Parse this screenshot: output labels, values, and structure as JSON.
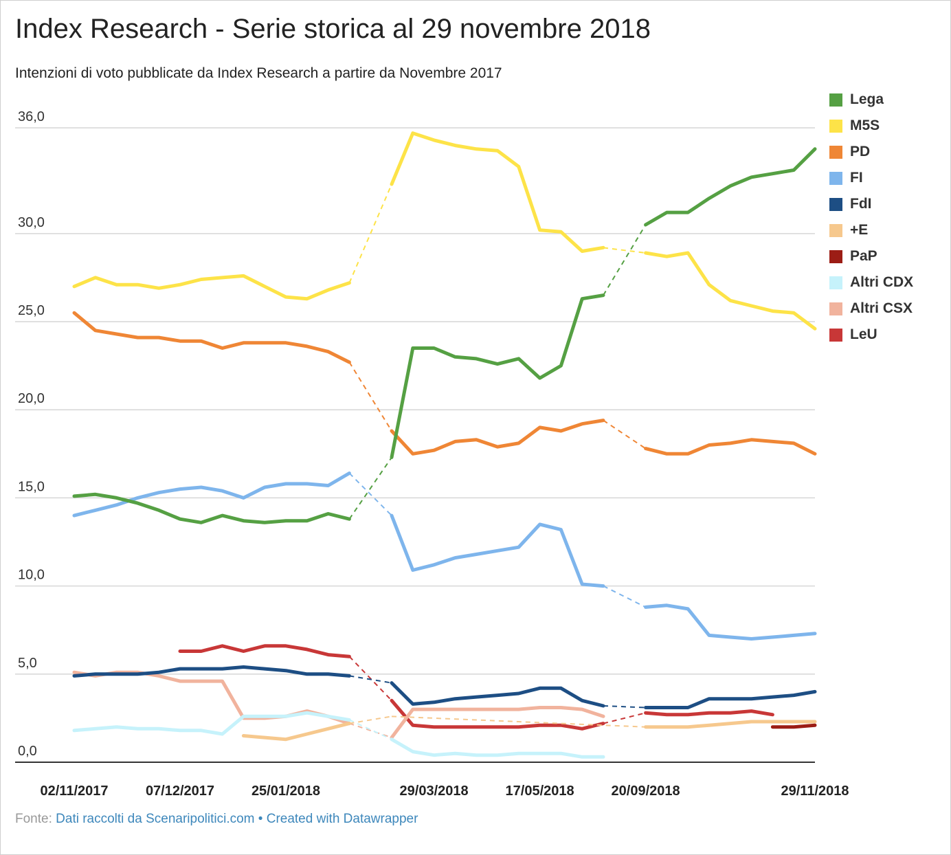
{
  "title": "Index Research - Serie storica al 29 novembre 2018",
  "subtitle": "Intenzioni di voto pubblicate da Index Research a partire da Novembre 2017",
  "footer": {
    "source_label": "Fonte:",
    "source_text": "Dati raccolti da Scenaripolitici.com",
    "separator": "•",
    "credit_text": "Created with Datawrapper"
  },
  "chart_data": {
    "type": "line",
    "title": "Index Research - Serie storica al 29 novembre 2018",
    "subtitle": "Intenzioni di voto pubblicate da Index Research a partire da Novembre 2017",
    "xlabel": "",
    "ylabel": "",
    "ylim": [
      0,
      36
    ],
    "y_ticks": [
      "0,0",
      "5,0",
      "10,0",
      "15,0",
      "20,0",
      "25,0",
      "30,0",
      "36,0"
    ],
    "y_tick_values": [
      0,
      5,
      10,
      15,
      20,
      25,
      30,
      36
    ],
    "x_ticks": [
      "02/11/2017",
      "07/12/2017",
      "25/01/2018",
      "29/03/2018",
      "17/05/2018",
      "20/09/2018",
      "29/11/2018"
    ],
    "x_tick_indices": [
      0,
      5,
      10,
      17,
      22,
      27,
      35
    ],
    "x_count": 36,
    "grid": true,
    "legend_position": "right",
    "series": [
      {
        "name": "Lega",
        "color": "#55a043",
        "values": [
          15.1,
          15.2,
          15.0,
          14.7,
          14.3,
          13.8,
          13.6,
          14.0,
          13.7,
          13.6,
          13.7,
          13.7,
          14.1,
          13.8,
          null,
          17.3,
          23.5,
          23.5,
          23.0,
          22.9,
          22.6,
          22.9,
          21.8,
          22.5,
          26.3,
          26.5,
          null,
          30.5,
          31.2,
          31.2,
          32.0,
          32.7,
          33.2,
          33.4,
          33.6,
          34.8
        ]
      },
      {
        "name": "M5S",
        "color": "#fde348",
        "values": [
          27.0,
          27.5,
          27.1,
          27.1,
          26.9,
          27.1,
          27.4,
          27.5,
          27.6,
          27.0,
          26.4,
          26.3,
          26.8,
          27.2,
          null,
          32.8,
          35.7,
          35.3,
          35.0,
          34.8,
          34.7,
          33.8,
          30.2,
          30.1,
          29.0,
          29.2,
          null,
          28.9,
          28.7,
          28.9,
          27.1,
          26.2,
          25.9,
          25.6,
          25.5,
          24.6
        ]
      },
      {
        "name": "PD",
        "color": "#ef8635",
        "values": [
          25.5,
          24.5,
          24.3,
          24.1,
          24.1,
          23.9,
          23.9,
          23.5,
          23.8,
          23.8,
          23.8,
          23.6,
          23.3,
          22.7,
          null,
          18.8,
          17.5,
          17.7,
          18.2,
          18.3,
          17.9,
          18.1,
          19.0,
          18.8,
          19.2,
          19.4,
          null,
          17.8,
          17.5,
          17.5,
          18.0,
          18.1,
          18.3,
          18.2,
          18.1,
          17.5
        ]
      },
      {
        "name": "FI",
        "color": "#7eb5ec",
        "values": [
          14.0,
          14.3,
          14.6,
          15.0,
          15.3,
          15.5,
          15.6,
          15.4,
          15.0,
          15.6,
          15.8,
          15.8,
          15.7,
          16.4,
          null,
          14.0,
          10.9,
          11.2,
          11.6,
          11.8,
          12.0,
          12.2,
          13.5,
          13.2,
          10.1,
          10.0,
          null,
          8.8,
          8.9,
          8.7,
          7.2,
          7.1,
          7.0,
          7.1,
          7.2,
          7.3
        ]
      },
      {
        "name": "FdI",
        "color": "#1d4e84",
        "values": [
          4.9,
          5.0,
          5.0,
          5.0,
          5.1,
          5.3,
          5.3,
          5.3,
          5.4,
          5.3,
          5.2,
          5.0,
          5.0,
          4.9,
          null,
          4.5,
          3.3,
          3.4,
          3.6,
          3.7,
          3.8,
          3.9,
          4.2,
          4.2,
          3.5,
          3.2,
          null,
          3.1,
          3.1,
          3.1,
          3.6,
          3.6,
          3.6,
          3.7,
          3.8,
          4.0
        ]
      },
      {
        "name": "+E",
        "color": "#f6c88d",
        "values": [
          null,
          null,
          null,
          null,
          null,
          null,
          null,
          null,
          1.5,
          1.4,
          1.3,
          1.6,
          1.9,
          2.2,
          null,
          2.6,
          null,
          null,
          null,
          null,
          null,
          null,
          null,
          null,
          null,
          null,
          null,
          2.0,
          2.0,
          2.0,
          2.1,
          2.2,
          2.3,
          2.3,
          2.3,
          2.3
        ]
      },
      {
        "name": "PaP",
        "color": "#9c1d15",
        "values": [
          null,
          null,
          null,
          null,
          null,
          null,
          null,
          null,
          null,
          null,
          null,
          null,
          null,
          null,
          null,
          null,
          null,
          null,
          null,
          null,
          null,
          null,
          null,
          null,
          null,
          null,
          null,
          null,
          null,
          null,
          null,
          null,
          null,
          2.0,
          2.0,
          2.1
        ]
      },
      {
        "name": "Altri CDX",
        "color": "#c6f2fb",
        "values": [
          1.8,
          1.9,
          2.0,
          1.9,
          1.9,
          1.8,
          1.8,
          1.6,
          2.6,
          2.6,
          2.6,
          2.8,
          2.6,
          2.4,
          null,
          1.3,
          0.6,
          0.4,
          0.5,
          0.4,
          0.4,
          0.5,
          0.5,
          0.5,
          0.3,
          0.3,
          null,
          null,
          null,
          null,
          null,
          null,
          null,
          null,
          null,
          null
        ]
      },
      {
        "name": "Altri CSX",
        "color": "#f1b39d",
        "values": [
          5.1,
          4.9,
          5.1,
          5.1,
          4.9,
          4.6,
          4.6,
          4.6,
          2.5,
          2.5,
          2.6,
          2.9,
          2.6,
          2.2,
          null,
          1.4,
          3.0,
          3.0,
          3.0,
          3.0,
          3.0,
          3.0,
          3.1,
          3.1,
          3.0,
          2.6,
          null,
          null,
          null,
          null,
          null,
          null,
          null,
          null,
          null,
          null
        ]
      },
      {
        "name": "LeU",
        "color": "#c83737",
        "values": [
          null,
          null,
          null,
          null,
          null,
          6.3,
          6.3,
          6.6,
          6.3,
          6.6,
          6.6,
          6.4,
          6.1,
          6.0,
          null,
          3.5,
          2.1,
          2.0,
          2.0,
          2.0,
          2.0,
          2.0,
          2.1,
          2.1,
          1.9,
          2.2,
          null,
          2.8,
          2.7,
          2.7,
          2.8,
          2.8,
          2.9,
          2.7,
          null,
          null
        ]
      }
    ]
  }
}
